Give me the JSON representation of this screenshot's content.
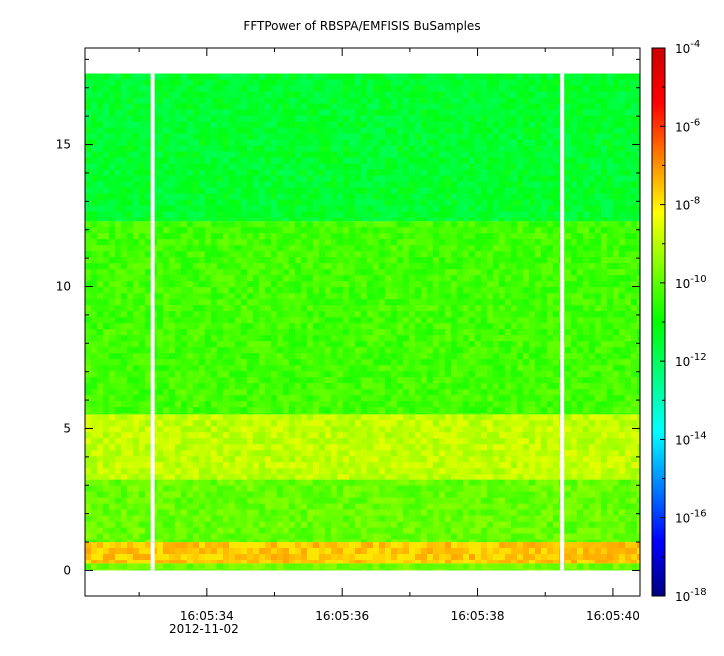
{
  "chart_data": {
    "type": "heatmap",
    "title": "FFTPower of RBSPA/EMFISIS  BuSamples",
    "xlabel": "",
    "ylabel": "",
    "x_tick_labels": [
      "16:05:34",
      "16:05:36",
      "16:05:38",
      "16:05:40"
    ],
    "x_tick_values_s": [
      34,
      36,
      38,
      40
    ],
    "x_date_label": "2012-11-02",
    "x_range_s": [
      32.2,
      40.4
    ],
    "y_ticks": [
      0,
      5,
      10,
      15
    ],
    "ylim": [
      -0.9,
      18.4
    ],
    "z_scale": "log",
    "zlim": [
      1e-18,
      0.0001
    ],
    "colorbar_ticks": [
      {
        "base": "10",
        "exp": "-4",
        "value": -4
      },
      {
        "base": "10",
        "exp": "-6",
        "value": -6
      },
      {
        "base": "10",
        "exp": "-8",
        "value": -8
      },
      {
        "base": "10",
        "exp": "-10",
        "value": -10
      },
      {
        "base": "10",
        "exp": "-12",
        "value": -12
      },
      {
        "base": "10",
        "exp": "-14",
        "value": -14
      },
      {
        "base": "10",
        "exp": "-16",
        "value": -16
      },
      {
        "base": "10",
        "exp": "-18",
        "value": -18
      }
    ],
    "colormap": [
      "#00007f",
      "#0000ff",
      "#0080ff",
      "#00ffff",
      "#00ff80",
      "#00ff00",
      "#80ff00",
      "#ffff00",
      "#ff8000",
      "#ff0000",
      "#cc0000"
    ],
    "data_y_range": [
      0,
      17.5
    ],
    "data_gaps_s": [
      33.2,
      39.25
    ],
    "power_bands": [
      {
        "y_range": [
          0,
          0.25
        ],
        "log_power": -9.8
      },
      {
        "y_range": [
          0.25,
          1.0
        ],
        "log_power": -7.6
      },
      {
        "y_range": [
          1.0,
          3.2
        ],
        "log_power": -9.9
      },
      {
        "y_range": [
          3.2,
          5.5
        ],
        "log_power": -8.9
      },
      {
        "y_range": [
          5.5,
          12.3
        ],
        "log_power": -10.3
      },
      {
        "y_range": [
          12.3,
          17.5
        ],
        "log_power": -11.5
      }
    ]
  }
}
